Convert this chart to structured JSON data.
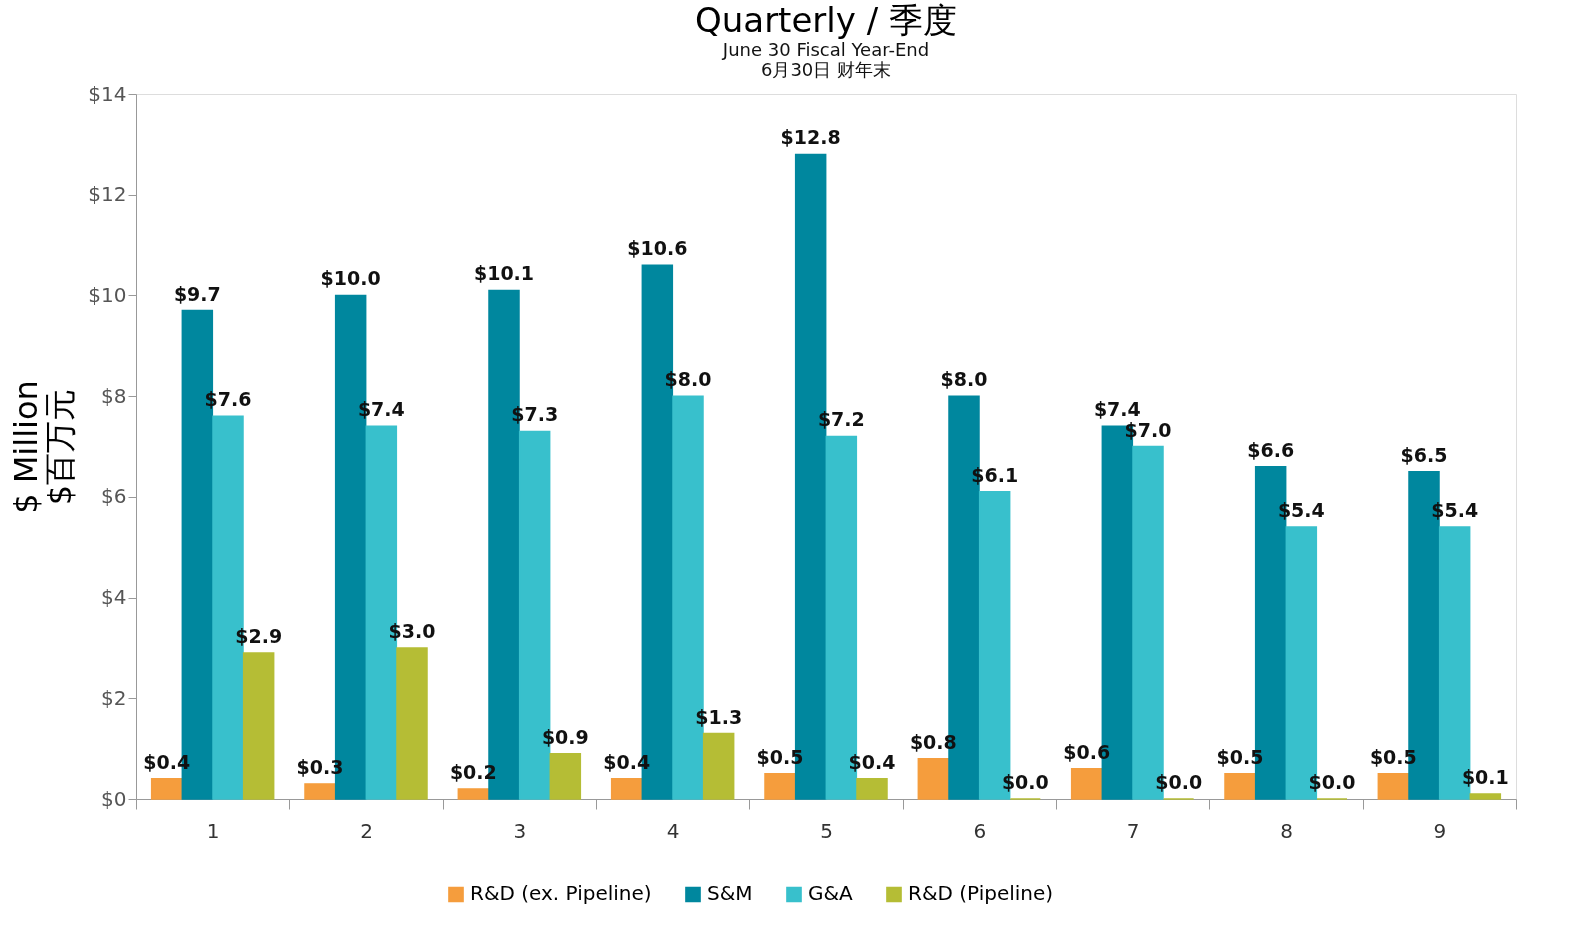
{
  "chart_data": {
    "type": "bar",
    "title": "Quarterly / 季度",
    "subtitle": "June 30 Fiscal Year-End\n6月30日 财年末",
    "ylabel": "$ Million\n$百万元",
    "categories": [
      "1",
      "2",
      "3",
      "4",
      "5",
      "6",
      "7",
      "8",
      "9"
    ],
    "series": [
      {
        "name": "R&D (ex. Pipeline)",
        "color": "#f59d3d",
        "values": [
          0.4,
          0.3,
          0.2,
          0.4,
          0.5,
          0.8,
          0.6,
          0.5,
          0.5
        ],
        "value_labels": [
          "$0.4",
          "$0.3",
          "$0.2",
          "$0.4",
          "$0.5",
          "$0.8",
          "$0.6",
          "$0.5",
          "$0.5"
        ]
      },
      {
        "name": "S&M",
        "color": "#00879e",
        "values": [
          9.7,
          10.0,
          10.1,
          10.6,
          12.8,
          8.0,
          7.4,
          6.6,
          6.5
        ],
        "value_labels": [
          "$9.7",
          "$10.0",
          "$10.1",
          "$10.6",
          "$12.8",
          "$8.0",
          "$7.4",
          "$6.6",
          "$6.5"
        ]
      },
      {
        "name": "G&A",
        "color": "#38c0cc",
        "values": [
          7.6,
          7.4,
          7.3,
          8.0,
          7.2,
          6.1,
          7.0,
          5.4,
          5.4
        ],
        "value_labels": [
          "$7.6",
          "$7.4",
          "$7.3",
          "$8.0",
          "$7.2",
          "$6.1",
          "$7.0",
          "$5.4",
          "$5.4"
        ]
      },
      {
        "name": "R&D (Pipeline)",
        "color": "#b5bd35",
        "values": [
          2.9,
          3.0,
          0.9,
          1.3,
          0.4,
          0.0,
          0.0,
          0.0,
          0.1
        ],
        "value_labels": [
          "$2.9",
          "$3.0",
          "$0.9",
          "$1.3",
          "$0.4",
          "$0.0",
          "$0.0",
          "$0.0",
          "$0.1"
        ]
      }
    ],
    "ylim": [
      0,
      14
    ],
    "yticks": [
      {
        "value": 0,
        "label": "$0"
      },
      {
        "value": 2,
        "label": "$2"
      },
      {
        "value": 4,
        "label": "$4"
      },
      {
        "value": 6,
        "label": "$6"
      },
      {
        "value": 8,
        "label": "$8"
      },
      {
        "value": 10,
        "label": "$10"
      },
      {
        "value": 12,
        "label": "$12"
      },
      {
        "value": 14,
        "label": "$14"
      }
    ],
    "grid": false,
    "legend": "bottom"
  }
}
